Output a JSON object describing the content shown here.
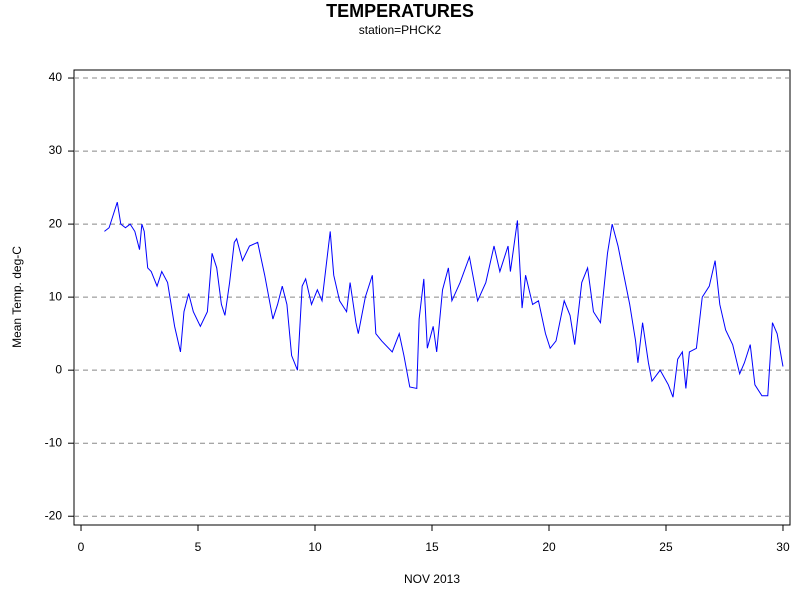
{
  "chart_data": {
    "type": "line",
    "title": "TEMPERATURES",
    "subtitle": "station=PHCK2",
    "x_label": "NOV 2013",
    "y_label": "Mean Temp. deg-C",
    "color": "#0000ff",
    "grid": true,
    "xlim": [
      -0.3,
      30.3
    ],
    "xticks": [
      0,
      5,
      10,
      15,
      20,
      25,
      30
    ],
    "ylim": [
      -21.2,
      41.1
    ],
    "yticks": [
      -20,
      -10,
      0,
      10,
      20,
      30,
      40
    ],
    "x": [
      1.0,
      1.2,
      1.4,
      1.55,
      1.7,
      1.9,
      2.1,
      2.3,
      2.5,
      2.6,
      2.7,
      2.85,
      3.0,
      3.25,
      3.45,
      3.7,
      4.0,
      4.25,
      4.4,
      4.6,
      4.8,
      5.1,
      5.4,
      5.6,
      5.8,
      6.0,
      6.15,
      6.35,
      6.55,
      6.65,
      6.9,
      7.2,
      7.55,
      7.85,
      8.2,
      8.4,
      8.6,
      8.8,
      9.0,
      9.25,
      9.45,
      9.6,
      9.85,
      10.1,
      10.3,
      10.65,
      10.8,
      11.05,
      11.35,
      11.5,
      11.75,
      11.85,
      12.15,
      12.45,
      12.6,
      12.85,
      13.3,
      13.6,
      13.8,
      14.05,
      14.35,
      14.45,
      14.65,
      14.8,
      15.05,
      15.2,
      15.45,
      15.7,
      15.85,
      16.2,
      16.6,
      16.95,
      17.3,
      17.65,
      17.9,
      18.25,
      18.35,
      18.65,
      18.85,
      19.0,
      19.3,
      19.55,
      19.85,
      20.05,
      20.3,
      20.65,
      20.9,
      21.1,
      21.4,
      21.65,
      21.9,
      22.2,
      22.5,
      22.7,
      22.95,
      23.2,
      23.45,
      23.7,
      23.8,
      24.0,
      24.25,
      24.4,
      24.75,
      25.1,
      25.3,
      25.5,
      25.7,
      25.85,
      26.0,
      26.3,
      26.55,
      26.85,
      27.1,
      27.3,
      27.55,
      27.85,
      28.15,
      28.35,
      28.6,
      28.8,
      29.1,
      29.35,
      29.55,
      29.75,
      30.0
    ],
    "values": [
      19,
      19.5,
      21.5,
      23,
      20,
      19.5,
      20,
      19,
      16.5,
      20,
      19,
      14,
      13.5,
      11.5,
      13.5,
      12,
      6,
      2.5,
      8,
      10.5,
      8,
      6,
      8,
      16,
      14,
      9,
      7.5,
      12,
      17.5,
      18,
      15,
      17,
      17.5,
      13,
      7,
      9,
      11.5,
      9,
      2,
      0,
      11.5,
      12.5,
      9,
      11,
      9.5,
      19,
      13,
      9.5,
      8,
      12,
      6.5,
      5,
      10,
      13,
      5,
      4,
      2.5,
      5,
      2,
      -2.3,
      -2.5,
      7,
      12.5,
      3,
      6,
      2.5,
      11,
      14,
      9.5,
      12,
      15.5,
      9.5,
      12,
      17,
      13.5,
      17,
      13.5,
      20.5,
      8.5,
      13,
      9,
      9.5,
      5,
      3,
      4,
      9.5,
      7.5,
      3.5,
      12,
      14,
      8,
      6.5,
      16,
      20,
      17,
      13,
      9,
      4,
      1,
      6.5,
      1,
      -1.5,
      0,
      -2,
      -3.7,
      1.5,
      2.5,
      -2.5,
      2.5,
      3,
      10,
      11.5,
      15,
      9,
      5.5,
      3.5,
      -0.5,
      1,
      3.5,
      -2,
      -3.5,
      -3.5,
      6.5,
      5,
      0.5
    ]
  }
}
